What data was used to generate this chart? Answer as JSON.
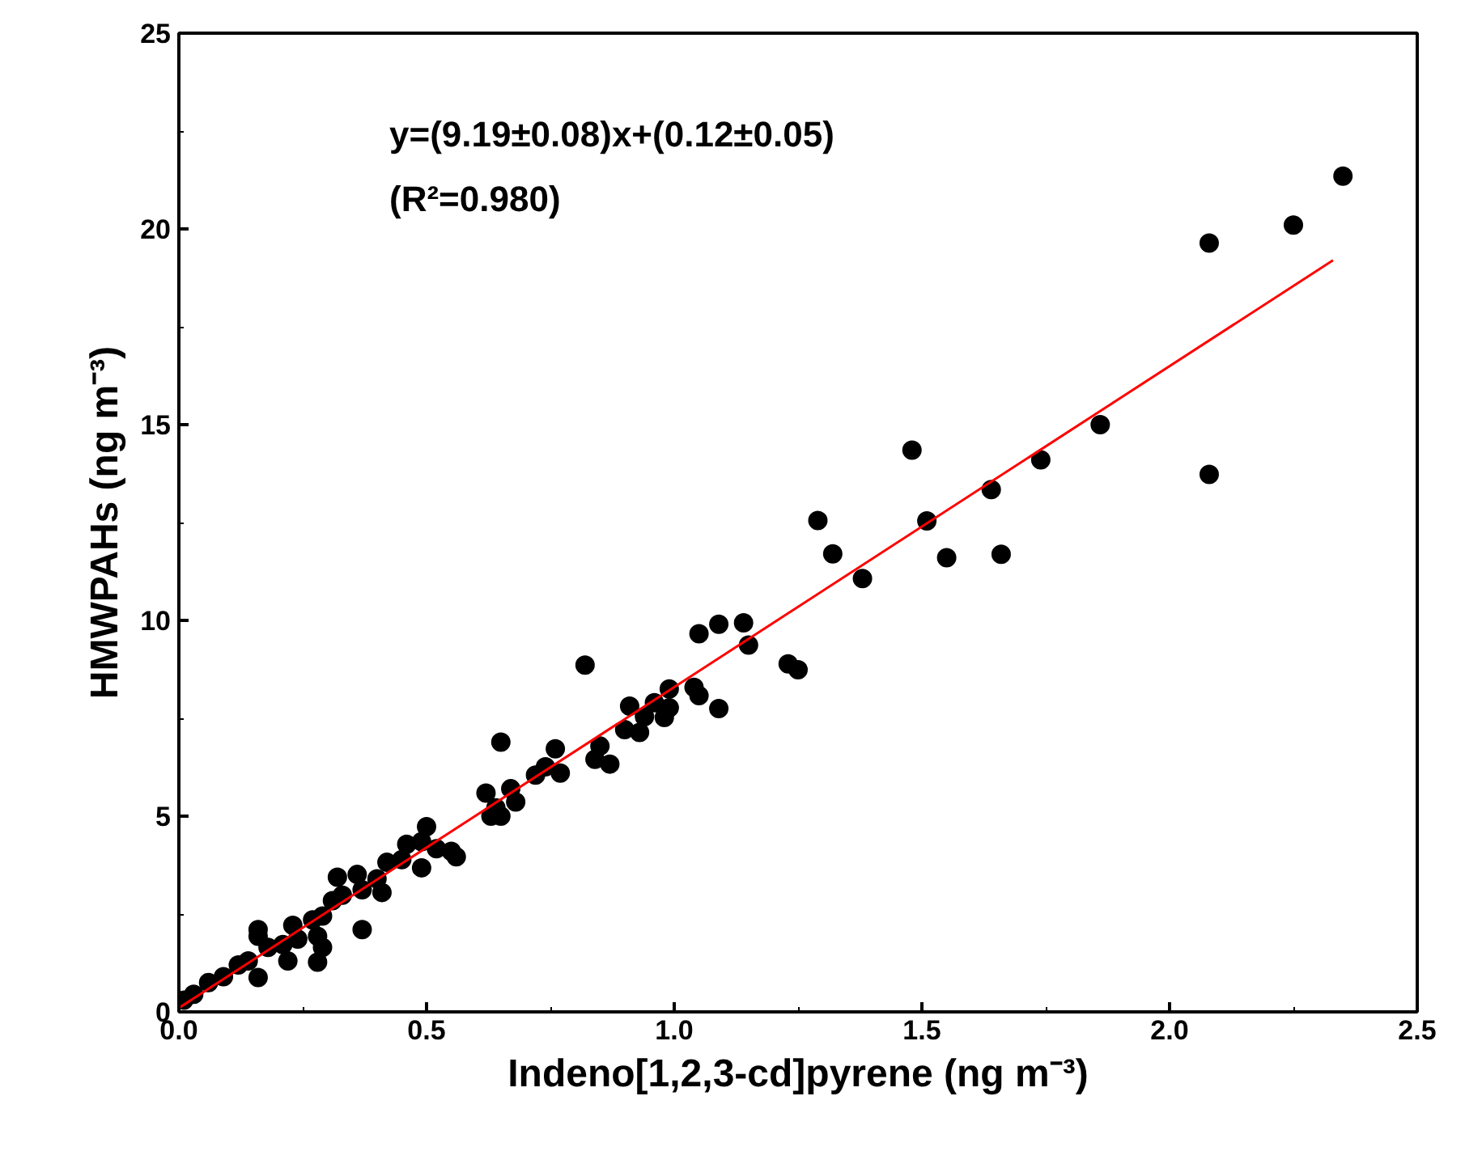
{
  "chart_data": {
    "type": "scatter",
    "xlabel": "Indeno[1,2,3-cd]pyrene (ng m⁻³)",
    "ylabel": "HMWPAHs (ng m⁻³)",
    "annotations": [
      "y=(9.19±0.08)x+(0.12±0.05)",
      "(R²=0.980)"
    ],
    "xlim": [
      0,
      2.5
    ],
    "ylim": [
      0,
      25
    ],
    "xticks": [
      {
        "value": 0,
        "label": "0.0"
      },
      {
        "value": 0.25,
        "label": null
      },
      {
        "value": 0.5,
        "label": "0.5"
      },
      {
        "value": 0.75,
        "label": null
      },
      {
        "value": 1,
        "label": "1.0"
      },
      {
        "value": 1.25,
        "label": null
      },
      {
        "value": 1.5,
        "label": "1.5"
      },
      {
        "value": 1.75,
        "label": null
      },
      {
        "value": 2,
        "label": "2.0"
      },
      {
        "value": 2.25,
        "label": null
      },
      {
        "value": 2.5,
        "label": "2.5"
      }
    ],
    "yticks": [
      0,
      {
        "value": 2.5,
        "label": null
      },
      5,
      {
        "value": 7.5,
        "label": null
      },
      10,
      {
        "value": 12.5,
        "label": null
      },
      15,
      {
        "value": 17.5,
        "label": null
      },
      20,
      {
        "value": 22.5,
        "label": null
      },
      25
    ],
    "grid": false,
    "series": [
      {
        "color": "#000000",
        "marker": "circle",
        "x": [
          2.35,
          2.25,
          2.08,
          2.08,
          1.86,
          1.74,
          1.64,
          1.66,
          1.48,
          1.51,
          1.55,
          1.38,
          1.29,
          1.32,
          1.05,
          1.09,
          1.14,
          1.15,
          1.23,
          1.25,
          1.09,
          1.04,
          1.05,
          0.99,
          0.91,
          0.96,
          0.99,
          0.94,
          0.98,
          0.9,
          0.93,
          0.82,
          0.65,
          0.76,
          0.85,
          0.84,
          0.87,
          0.74,
          0.77,
          0.72,
          0.62,
          0.67,
          0.64,
          0.68,
          0.63,
          0.65,
          0.5,
          0.46,
          0.49,
          0.42,
          0.45,
          0.49,
          0.52,
          0.55,
          0.56,
          0.4,
          0.41,
          0.36,
          0.37,
          0.32,
          0.31,
          0.33,
          0.37,
          0.27,
          0.29,
          0.28,
          0.29,
          0.28,
          0.23,
          0.24,
          0.22,
          0.16,
          0.16,
          0.18,
          0.21,
          0.16,
          0.01,
          0.03,
          0.06,
          0.09,
          0.12,
          0.14
        ],
        "values": [
          21.35,
          20.1,
          19.64,
          13.73,
          15.0,
          14.1,
          13.34,
          11.69,
          14.35,
          12.54,
          11.6,
          11.07,
          12.55,
          11.7,
          9.66,
          9.9,
          9.94,
          9.37,
          8.89,
          8.74,
          7.75,
          8.29,
          8.08,
          8.25,
          7.81,
          7.9,
          7.77,
          7.54,
          7.52,
          7.21,
          7.14,
          8.86,
          6.89,
          6.72,
          6.79,
          6.45,
          6.33,
          6.26,
          6.1,
          6.05,
          5.59,
          5.7,
          5.21,
          5.36,
          5.0,
          5.0,
          4.73,
          4.28,
          4.35,
          3.82,
          3.89,
          3.68,
          4.17,
          4.1,
          3.96,
          3.4,
          3.05,
          3.51,
          3.12,
          3.44,
          2.84,
          2.98,
          2.1,
          2.35,
          2.45,
          1.93,
          1.65,
          1.27,
          2.21,
          1.86,
          1.3,
          2.1,
          1.93,
          1.65,
          1.72,
          0.88,
          0.3,
          0.45,
          0.75,
          0.9,
          1.2,
          1.3
        ]
      },
      {
        "type": "line",
        "color": "#ff0000",
        "line_style": "solid",
        "x": [
          0,
          2.33
        ],
        "values": [
          0.1,
          19.2
        ]
      }
    ]
  }
}
